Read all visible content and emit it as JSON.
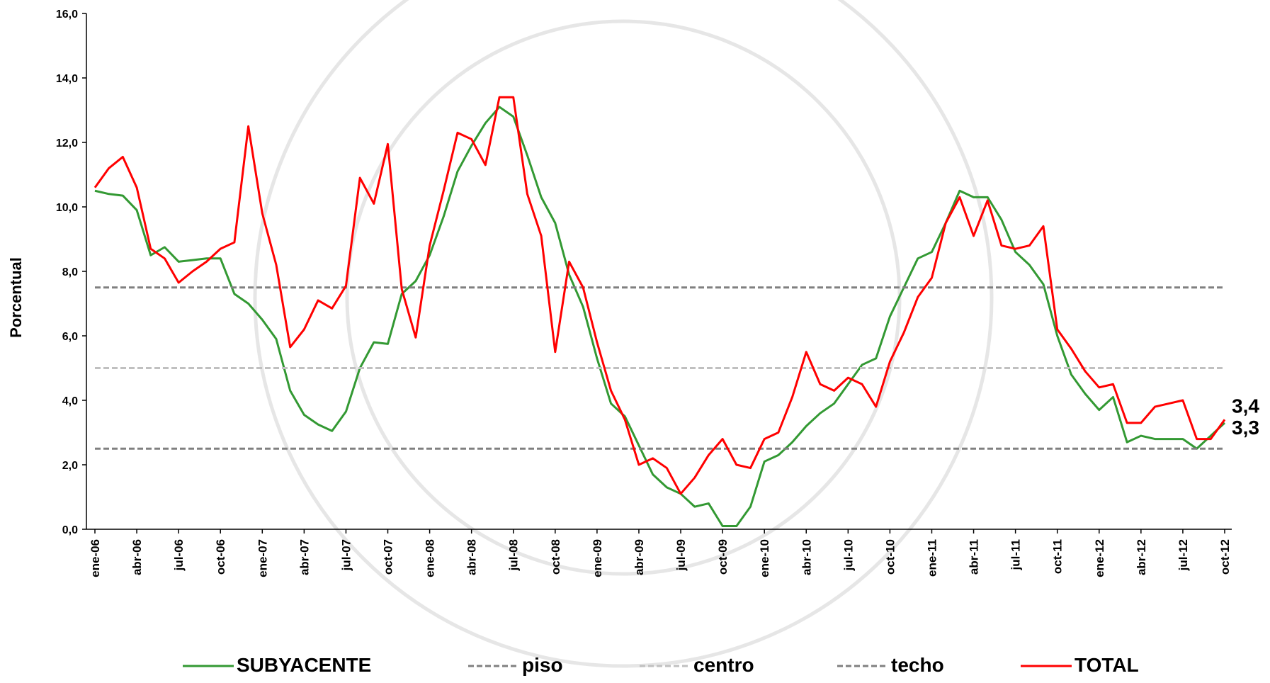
{
  "chart_data": {
    "type": "line",
    "y_label": "Porcentual",
    "categories": [
      "ene-06",
      null,
      null,
      "abr-06",
      null,
      null,
      "jul-06",
      null,
      null,
      "oct-06",
      null,
      null,
      "ene-07",
      null,
      null,
      "abr-07",
      null,
      null,
      "jul-07",
      null,
      null,
      "oct-07",
      null,
      null,
      "ene-08",
      null,
      null,
      "abr-08",
      null,
      null,
      "jul-08",
      null,
      null,
      "oct-08",
      null,
      null,
      "ene-09",
      null,
      null,
      "abr-09",
      null,
      null,
      "jul-09",
      null,
      null,
      "oct-09",
      null,
      null,
      "ene-10",
      null,
      null,
      "abr-10",
      null,
      null,
      "jul-10",
      null,
      null,
      "oct-10",
      null,
      null,
      "ene-11",
      null,
      null,
      "abr-11",
      null,
      null,
      "jul-11",
      null,
      null,
      "oct-11",
      null,
      null,
      "ene-12",
      null,
      null,
      "abr-12",
      null,
      null,
      "jul-12",
      null,
      null,
      "oct-12"
    ],
    "series": [
      {
        "name": "SUBYACENTE",
        "color": "#339933",
        "dash": false,
        "last_label": "3,3",
        "values": [
          10.5,
          10.4,
          10.35,
          9.9,
          8.5,
          8.75,
          8.3,
          8.35,
          8.4,
          8.4,
          7.3,
          7.0,
          6.5,
          5.9,
          4.3,
          3.55,
          3.25,
          3.05,
          3.65,
          5.0,
          5.8,
          5.75,
          7.3,
          7.7,
          8.5,
          9.7,
          11.1,
          11.9,
          12.6,
          13.1,
          12.8,
          11.6,
          10.3,
          9.5,
          7.9,
          6.9,
          5.3,
          3.9,
          3.5,
          2.6,
          1.7,
          1.3,
          1.1,
          0.7,
          0.8,
          0.1,
          0.1,
          0.7,
          2.1,
          2.3,
          2.7,
          3.2,
          3.6,
          3.9,
          4.5,
          5.1,
          5.3,
          6.6,
          7.5,
          8.4,
          8.6,
          9.5,
          10.5,
          10.3,
          10.3,
          9.6,
          8.6,
          8.2,
          7.6,
          6.0,
          4.8,
          4.2,
          3.7,
          4.1,
          2.7,
          2.9,
          2.8,
          2.8,
          2.8,
          2.5,
          2.9,
          3.3
        ]
      },
      {
        "name": "piso",
        "color": "#808080",
        "dash": true,
        "values": [
          2.5,
          2.5,
          2.5,
          2.5,
          2.5,
          2.5,
          2.5,
          2.5,
          2.5,
          2.5,
          2.5,
          2.5,
          2.5,
          2.5,
          2.5,
          2.5,
          2.5,
          2.5,
          2.5,
          2.5,
          2.5,
          2.5,
          2.5,
          2.5,
          2.5,
          2.5,
          2.5,
          2.5,
          2.5,
          2.5,
          2.5,
          2.5,
          2.5,
          2.5,
          2.5,
          2.5,
          2.5,
          2.5,
          2.5,
          2.5,
          2.5,
          2.5,
          2.5,
          2.5,
          2.5,
          2.5,
          2.5,
          2.5,
          2.5,
          2.5,
          2.5,
          2.5,
          2.5,
          2.5,
          2.5,
          2.5,
          2.5,
          2.5,
          2.5,
          2.5,
          2.5,
          2.5,
          2.5,
          2.5,
          2.5,
          2.5,
          2.5,
          2.5,
          2.5,
          2.5,
          2.5,
          2.5,
          2.5,
          2.5,
          2.5,
          2.5,
          2.5,
          2.5,
          2.5,
          2.5,
          2.5,
          2.5
        ]
      },
      {
        "name": "centro",
        "color": "#c0c0c0",
        "dash": true,
        "values": [
          5,
          5,
          5,
          5,
          5,
          5,
          5,
          5,
          5,
          5,
          5,
          5,
          5,
          5,
          5,
          5,
          5,
          5,
          5,
          5,
          5,
          5,
          5,
          5,
          5,
          5,
          5,
          5,
          5,
          5,
          5,
          5,
          5,
          5,
          5,
          5,
          5,
          5,
          5,
          5,
          5,
          5,
          5,
          5,
          5,
          5,
          5,
          5,
          5,
          5,
          5,
          5,
          5,
          5,
          5,
          5,
          5,
          5,
          5,
          5,
          5,
          5,
          5,
          5,
          5,
          5,
          5,
          5,
          5,
          5,
          5,
          5,
          5,
          5,
          5,
          5,
          5,
          5,
          5,
          5,
          5,
          5
        ]
      },
      {
        "name": "techo",
        "color": "#808080",
        "dash": true,
        "values": [
          7.5,
          7.5,
          7.5,
          7.5,
          7.5,
          7.5,
          7.5,
          7.5,
          7.5,
          7.5,
          7.5,
          7.5,
          7.5,
          7.5,
          7.5,
          7.5,
          7.5,
          7.5,
          7.5,
          7.5,
          7.5,
          7.5,
          7.5,
          7.5,
          7.5,
          7.5,
          7.5,
          7.5,
          7.5,
          7.5,
          7.5,
          7.5,
          7.5,
          7.5,
          7.5,
          7.5,
          7.5,
          7.5,
          7.5,
          7.5,
          7.5,
          7.5,
          7.5,
          7.5,
          7.5,
          7.5,
          7.5,
          7.5,
          7.5,
          7.5,
          7.5,
          7.5,
          7.5,
          7.5,
          7.5,
          7.5,
          7.5,
          7.5,
          7.5,
          7.5,
          7.5,
          7.5,
          7.5,
          7.5,
          7.5,
          7.5,
          7.5,
          7.5,
          7.5,
          7.5,
          7.5,
          7.5,
          7.5,
          7.5,
          7.5,
          7.5,
          7.5,
          7.5,
          7.5,
          7.5,
          7.5,
          7.5
        ]
      },
      {
        "name": "TOTAL",
        "color": "#ff0000",
        "dash": false,
        "last_label": "3,4",
        "values": [
          10.6,
          11.2,
          11.55,
          10.6,
          8.7,
          8.4,
          7.65,
          8.0,
          8.3,
          8.7,
          8.9,
          12.5,
          9.8,
          8.2,
          5.65,
          6.2,
          7.1,
          6.85,
          7.55,
          10.9,
          10.1,
          11.95,
          7.45,
          5.95,
          8.8,
          10.5,
          12.3,
          12.1,
          11.3,
          13.4,
          13.4,
          10.4,
          9.1,
          5.5,
          8.3,
          7.5,
          5.8,
          4.3,
          3.4,
          2.0,
          2.2,
          1.9,
          1.1,
          1.6,
          2.3,
          2.8,
          2.0,
          1.9,
          2.8,
          3.0,
          4.1,
          5.5,
          4.5,
          4.3,
          4.7,
          4.5,
          3.8,
          5.2,
          6.1,
          7.2,
          7.8,
          9.5,
          10.3,
          9.1,
          10.2,
          8.8,
          8.7,
          8.8,
          9.4,
          6.2,
          5.6,
          4.9,
          4.4,
          4.5,
          3.3,
          3.3,
          3.8,
          3.9,
          4.0,
          2.8,
          2.8,
          3.4
        ]
      }
    ],
    "ylim": [
      0,
      16
    ],
    "yticks": [
      {
        "value": 0,
        "label": "0,0"
      },
      {
        "value": 2,
        "label": "2,0"
      },
      {
        "value": 4,
        "label": "4,0"
      },
      {
        "value": 6,
        "label": "6,0"
      },
      {
        "value": 8,
        "label": "8,0"
      },
      {
        "value": 10,
        "label": "10,0"
      },
      {
        "value": 12,
        "label": "12,0"
      },
      {
        "value": 14,
        "label": "14,0"
      },
      {
        "value": 16,
        "label": "16,0"
      }
    ]
  }
}
